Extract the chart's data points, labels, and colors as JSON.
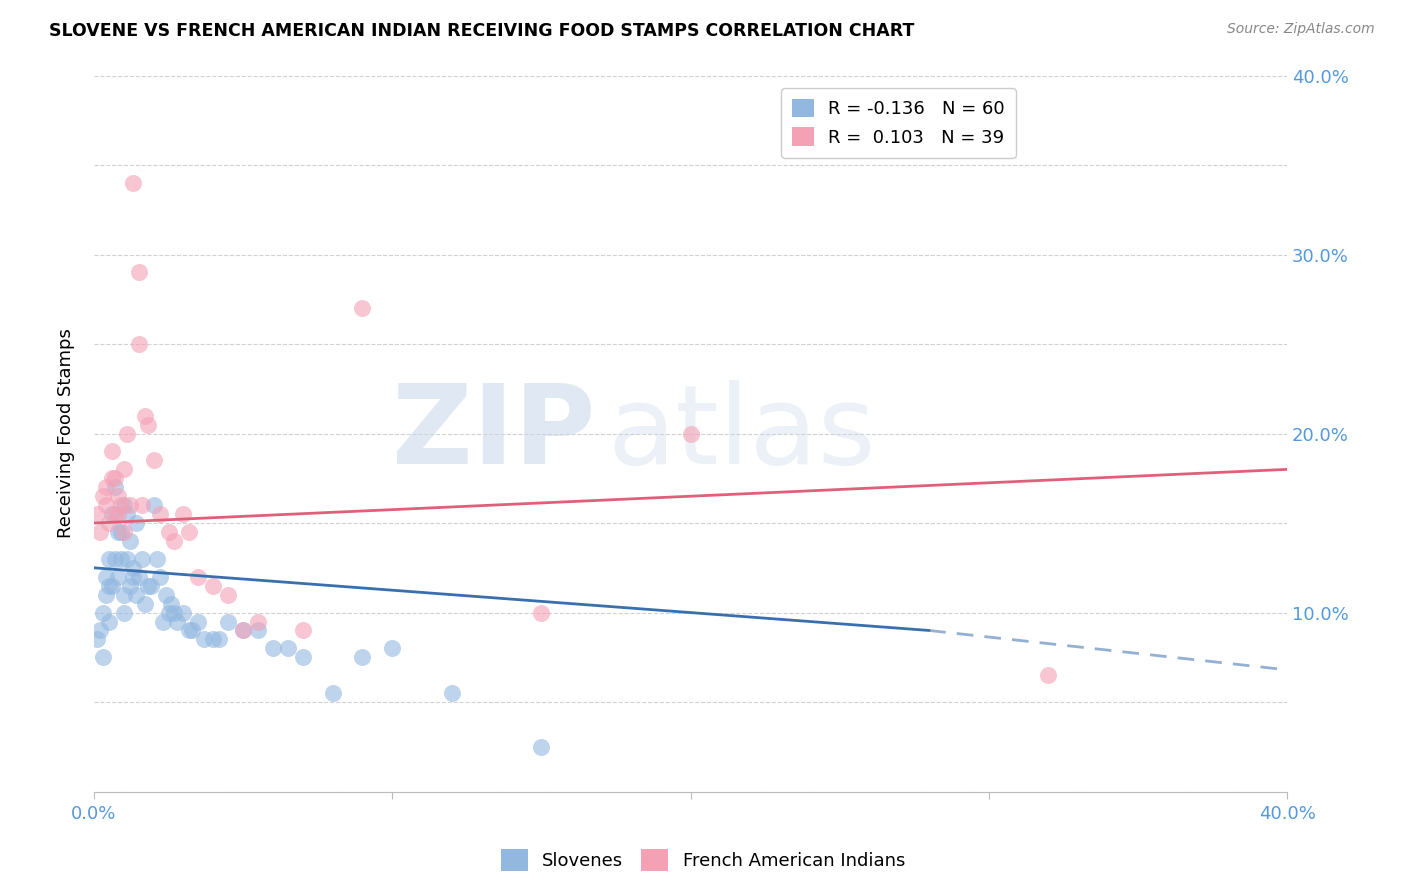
{
  "title": "SLOVENE VS FRENCH AMERICAN INDIAN RECEIVING FOOD STAMPS CORRELATION CHART",
  "source": "Source: ZipAtlas.com",
  "ylabel": "Receiving Food Stamps",
  "xlim": [
    0.0,
    0.4
  ],
  "ylim": [
    0.0,
    0.4
  ],
  "blue_color": "#92b8e0",
  "pink_color": "#f4a0b5",
  "blue_line_color": "#3a6fad",
  "pink_line_color": "#e0607a",
  "R_blue": -0.136,
  "N_blue": 60,
  "R_pink": 0.103,
  "N_pink": 39,
  "legend_label_blue": "Slovenes",
  "legend_label_pink": "French American Indians",
  "blue_x": [
    0.001,
    0.002,
    0.003,
    0.003,
    0.004,
    0.004,
    0.005,
    0.005,
    0.005,
    0.006,
    0.006,
    0.007,
    0.007,
    0.008,
    0.008,
    0.009,
    0.009,
    0.01,
    0.01,
    0.01,
    0.011,
    0.011,
    0.012,
    0.012,
    0.013,
    0.013,
    0.014,
    0.014,
    0.015,
    0.016,
    0.017,
    0.018,
    0.019,
    0.02,
    0.021,
    0.022,
    0.023,
    0.024,
    0.025,
    0.026,
    0.027,
    0.028,
    0.03,
    0.032,
    0.033,
    0.035,
    0.037,
    0.04,
    0.042,
    0.045,
    0.05,
    0.055,
    0.06,
    0.065,
    0.07,
    0.08,
    0.09,
    0.1,
    0.12,
    0.15
  ],
  "blue_y": [
    0.085,
    0.09,
    0.1,
    0.075,
    0.11,
    0.12,
    0.13,
    0.095,
    0.115,
    0.155,
    0.115,
    0.17,
    0.13,
    0.145,
    0.12,
    0.145,
    0.13,
    0.16,
    0.11,
    0.1,
    0.155,
    0.13,
    0.14,
    0.115,
    0.12,
    0.125,
    0.15,
    0.11,
    0.12,
    0.13,
    0.105,
    0.115,
    0.115,
    0.16,
    0.13,
    0.12,
    0.095,
    0.11,
    0.1,
    0.105,
    0.1,
    0.095,
    0.1,
    0.09,
    0.09,
    0.095,
    0.085,
    0.085,
    0.085,
    0.095,
    0.09,
    0.09,
    0.08,
    0.08,
    0.075,
    0.055,
    0.075,
    0.08,
    0.055,
    0.025
  ],
  "pink_x": [
    0.001,
    0.002,
    0.003,
    0.004,
    0.004,
    0.005,
    0.006,
    0.006,
    0.007,
    0.007,
    0.008,
    0.008,
    0.009,
    0.01,
    0.01,
    0.011,
    0.012,
    0.013,
    0.015,
    0.015,
    0.016,
    0.017,
    0.018,
    0.02,
    0.022,
    0.025,
    0.027,
    0.03,
    0.032,
    0.035,
    0.04,
    0.045,
    0.05,
    0.055,
    0.07,
    0.09,
    0.15,
    0.2,
    0.32
  ],
  "pink_y": [
    0.155,
    0.145,
    0.165,
    0.17,
    0.16,
    0.15,
    0.175,
    0.19,
    0.155,
    0.175,
    0.155,
    0.165,
    0.16,
    0.145,
    0.18,
    0.2,
    0.16,
    0.34,
    0.29,
    0.25,
    0.16,
    0.21,
    0.205,
    0.185,
    0.155,
    0.145,
    0.14,
    0.155,
    0.145,
    0.12,
    0.115,
    0.11,
    0.09,
    0.095,
    0.09,
    0.27,
    0.1,
    0.2,
    0.065
  ],
  "blue_trend_x0": 0.0,
  "blue_trend_x1": 0.28,
  "blue_trend_x2": 0.4,
  "blue_trend_y0": 0.125,
  "blue_trend_y1": 0.09,
  "blue_trend_y2": 0.068,
  "pink_trend_x0": 0.0,
  "pink_trend_x1": 0.4,
  "pink_trend_y0": 0.15,
  "pink_trend_y1": 0.18
}
